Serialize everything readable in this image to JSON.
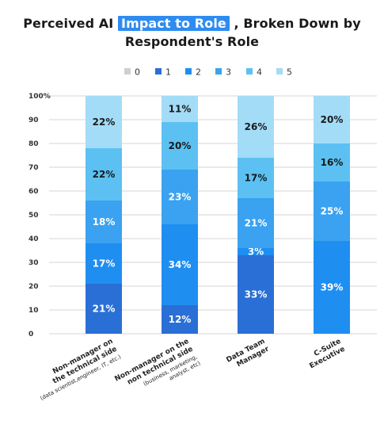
{
  "title": {
    "part1": "Perceived AI ",
    "highlight": "Impact to Role",
    "part2": " , Broken Down by",
    "line2": "Respondent's Role"
  },
  "chart_data": {
    "type": "bar",
    "stacked": true,
    "legend_position": "top",
    "grid": true,
    "ylim": [
      0,
      100
    ],
    "y_ticks": [
      "0",
      "10",
      "20",
      "30",
      "40",
      "50",
      "60",
      "70",
      "80",
      "90",
      "100%"
    ],
    "categories": [
      {
        "lines": [
          "Non-manager on",
          "the technical side"
        ],
        "sub": "(data scientist,engineer, IT, etc.)"
      },
      {
        "lines": [
          "Non-manager on the",
          "non technical side"
        ],
        "sub_lines": [
          "(business, marketing,",
          "analyst, etc)"
        ]
      },
      {
        "lines": [
          "Data Team",
          "Manager"
        ]
      },
      {
        "lines": [
          "C-Suite",
          "Executive"
        ]
      }
    ],
    "series": [
      {
        "name": "0",
        "color": "#cfcfcf",
        "values": [
          0,
          0,
          0,
          0
        ]
      },
      {
        "name": "1",
        "color": "#2a6fd6",
        "values": [
          21,
          12,
          33,
          0
        ]
      },
      {
        "name": "2",
        "color": "#1f8ef1",
        "values": [
          17,
          34,
          3,
          39
        ]
      },
      {
        "name": "3",
        "color": "#3aa2f0",
        "values": [
          18,
          23,
          21,
          25
        ]
      },
      {
        "name": "4",
        "color": "#5cc1f2",
        "values": [
          22,
          20,
          17,
          16
        ]
      },
      {
        "name": "5",
        "color": "#a3dcf7",
        "values": [
          22,
          11,
          26,
          20
        ]
      }
    ],
    "labels": [
      [
        "",
        "21%",
        "17%",
        "18%",
        "22%",
        "22%"
      ],
      [
        "",
        "12%",
        "34%",
        "23%",
        "20%",
        "11%"
      ],
      [
        "",
        "33%",
        "3%",
        "21%",
        "17%",
        "26%"
      ],
      [
        "",
        "",
        "39%",
        "25%",
        "16%",
        "20%"
      ]
    ]
  }
}
